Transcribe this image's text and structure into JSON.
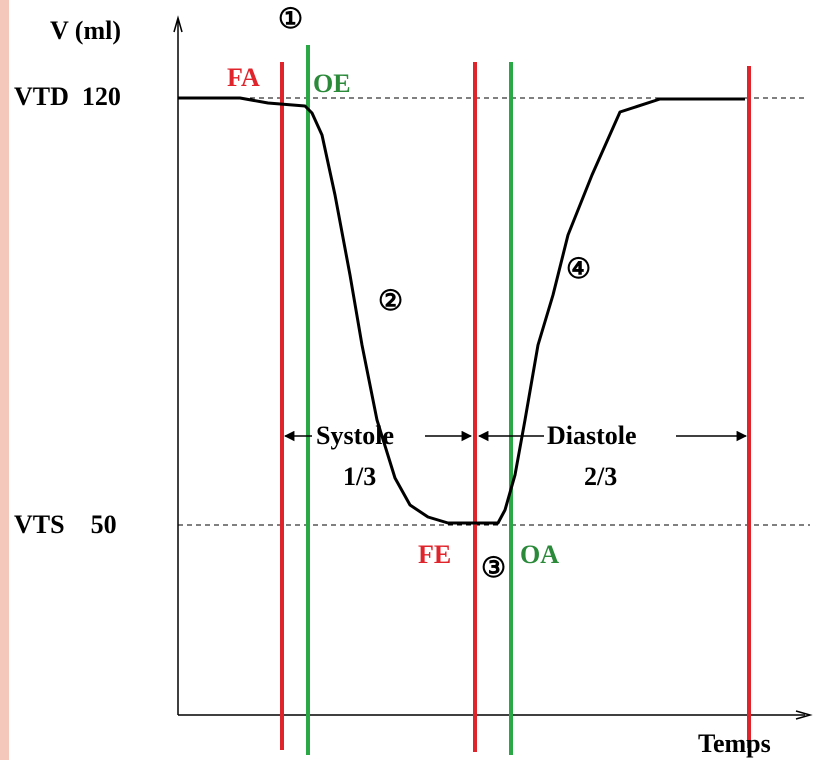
{
  "labels": {
    "y_axis": "V (ml)",
    "x_axis": "Temps",
    "vtd": "VTD  120",
    "vts": "VTS    50",
    "fa": "FA",
    "oe": "OE",
    "fe": "FE",
    "oa": "OA",
    "phase_1": "①",
    "phase_2": "②",
    "phase_3": "③",
    "phase_4": "④",
    "systole": "Systole",
    "systole_frac": "1/3",
    "diastole": "Diastole",
    "diastole_frac": "2/3"
  },
  "colors": {
    "closing_line": "#e0242c",
    "opening_line": "#2aa845",
    "label_red": "#e0242c",
    "label_green": "#2a8a3a",
    "curve": "#000000",
    "stripe": "#f4c9bc"
  },
  "values": {
    "end_diastolic_volume_ml": 120,
    "end_systolic_volume_ml": 50
  }
}
